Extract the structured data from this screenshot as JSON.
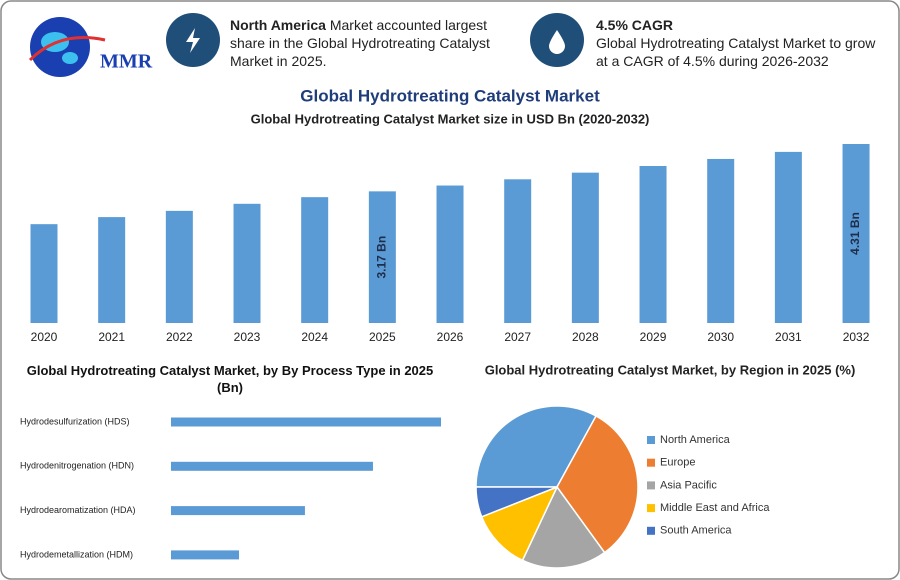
{
  "logo": "MMR",
  "info": [
    {
      "title": "North America",
      "text": "Market accounted largest share in the Global Hydrotreating Catalyst Market in 2025."
    },
    {
      "title": "4.5% CAGR",
      "text": "Global Hydrotreating Catalyst Market to grow at a CAGR of 4.5% during 2026-2032"
    }
  ],
  "title": "Global Hydrotreating Catalyst Market",
  "chart_data": [
    {
      "type": "bar",
      "title": "Global Hydrotreating Catalyst Market size in USD Bn (2020-2032)",
      "categories": [
        "2020",
        "2021",
        "2022",
        "2023",
        "2024",
        "2025",
        "2026",
        "2027",
        "2028",
        "2029",
        "2030",
        "2031",
        "2032"
      ],
      "values": [
        2.38,
        2.55,
        2.7,
        2.87,
        3.03,
        3.17,
        3.31,
        3.46,
        3.62,
        3.78,
        3.95,
        4.12,
        4.31
      ],
      "value_labels": [
        null,
        null,
        null,
        null,
        null,
        "3.17 Bn",
        null,
        null,
        null,
        null,
        null,
        null,
        "4.31 Bn"
      ],
      "color": "#5b9bd5"
    },
    {
      "type": "hbar",
      "title": "Global Hydrotreating Catalyst Market, by By Process Type in 2025 (Bn)",
      "categories": [
        "Hydrodesulfurization (HDS)",
        "Hydrodenitrogenation (HDN)",
        "Hydrodearomatization (HDA)",
        "Hydrodemetallization (HDM)"
      ],
      "values": [
        1.27,
        0.95,
        0.63,
        0.32
      ],
      "color": "#5b9bd5"
    },
    {
      "type": "pie",
      "title": "Global Hydrotreating Catalyst Market, by Region in 2025 (%)",
      "categories": [
        "North America",
        "Europe",
        "Asia Pacific",
        "Middle East and Africa",
        "South America"
      ],
      "values": [
        33,
        32,
        17,
        12,
        6
      ],
      "colors": [
        "#5b9bd5",
        "#ed7d31",
        "#a5a5a5",
        "#ffc000",
        "#4472c4"
      ]
    }
  ]
}
